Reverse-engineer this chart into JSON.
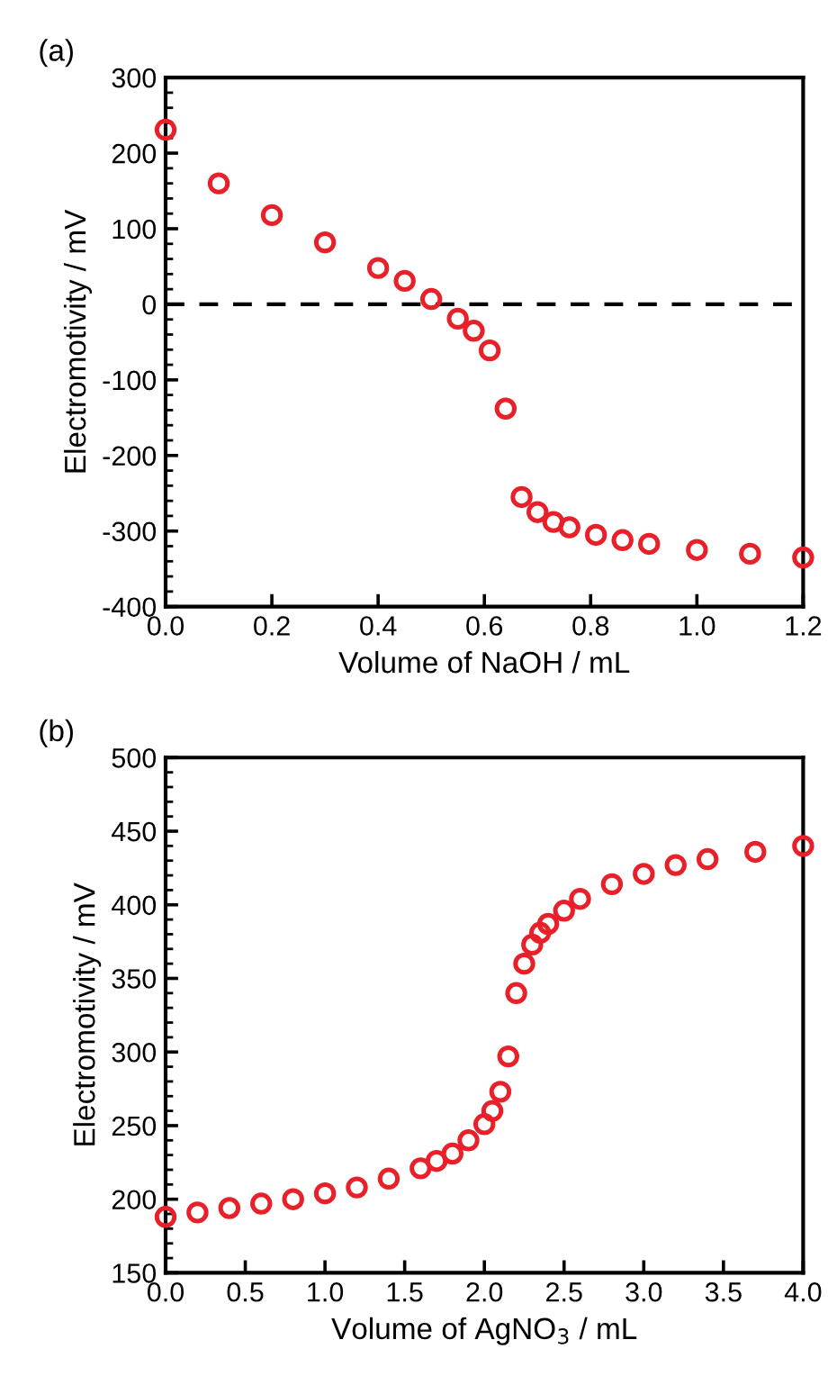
{
  "chart_data": [
    {
      "type": "scatter",
      "title": "(a)",
      "xlabel": "Volume of NaOH / mL",
      "ylabel": "Electromotivity / mV",
      "x": [
        0,
        0.1,
        0.2,
        0.3,
        0.4,
        0.45,
        0.5,
        0.55,
        0.58,
        0.61,
        0.64,
        0.67,
        0.7,
        0.73,
        0.76,
        0.81,
        0.86,
        0.91,
        1.0,
        1.1,
        1.2
      ],
      "series": [
        {
          "color": "#e8202a",
          "values": [
            231,
            160,
            118,
            82,
            48,
            31,
            7,
            -19,
            -35,
            -61,
            -138,
            -255,
            -275,
            -288,
            -295,
            -305,
            -312,
            -317,
            -325,
            -330,
            -335
          ]
        }
      ],
      "xlim": [
        0,
        1.2
      ],
      "xticks": [
        {
          "value": 0,
          "label": "0.0"
        },
        {
          "value": 0.2,
          "label": "0.2"
        },
        {
          "value": 0.4,
          "label": "0.4"
        },
        {
          "value": 0.6,
          "label": "0.6"
        },
        {
          "value": 0.8,
          "label": "0.8"
        },
        {
          "value": 1.0,
          "label": "1.0"
        },
        {
          "value": 1.2,
          "label": "1.2"
        }
      ],
      "ylim": [
        -400,
        300
      ],
      "yticks": [
        -400,
        -300,
        -200,
        -100,
        0,
        100,
        200,
        300
      ],
      "ref_lines": [
        {
          "axis": "y",
          "value": 0,
          "color": "#000000",
          "line_style": "dashed"
        }
      ],
      "marker": "circle",
      "grid": false,
      "legend": false
    },
    {
      "type": "scatter",
      "title": "(b)",
      "xlabel": "Volume of AgNO$_{3}$ / mL",
      "ylabel": "Electromotivity / mV",
      "x": [
        0,
        0.2,
        0.4,
        0.6,
        0.8,
        1.0,
        1.2,
        1.4,
        1.6,
        1.7,
        1.8,
        1.9,
        2.0,
        2.05,
        2.1,
        2.15,
        2.2,
        2.25,
        2.3,
        2.35,
        2.4,
        2.5,
        2.6,
        2.8,
        3.0,
        3.2,
        3.4,
        3.7,
        4.0
      ],
      "series": [
        {
          "color": "#e8202a",
          "values": [
            188,
            191,
            194,
            197,
            200,
            204,
            208,
            214,
            221,
            226,
            231,
            240,
            251,
            260,
            273,
            297,
            340,
            360,
            373,
            381,
            387,
            396,
            404,
            414,
            421,
            427,
            431,
            436,
            440
          ]
        }
      ],
      "xlim": [
        0,
        4
      ],
      "xticks": [
        {
          "value": 0,
          "label": "0.0"
        },
        {
          "value": 0.5,
          "label": "0.5"
        },
        {
          "value": 1.0,
          "label": "1.0"
        },
        {
          "value": 1.5,
          "label": "1.5"
        },
        {
          "value": 2.0,
          "label": "2.0"
        },
        {
          "value": 2.5,
          "label": "2.5"
        },
        {
          "value": 3.0,
          "label": "3.0"
        },
        {
          "value": 3.5,
          "label": "3.5"
        },
        {
          "value": 4.0,
          "label": "4.0"
        }
      ],
      "ylim": [
        150,
        500
      ],
      "yticks": [
        150,
        200,
        250,
        300,
        350,
        400,
        450,
        500
      ],
      "marker": "circle",
      "grid": false,
      "legend": false
    }
  ]
}
